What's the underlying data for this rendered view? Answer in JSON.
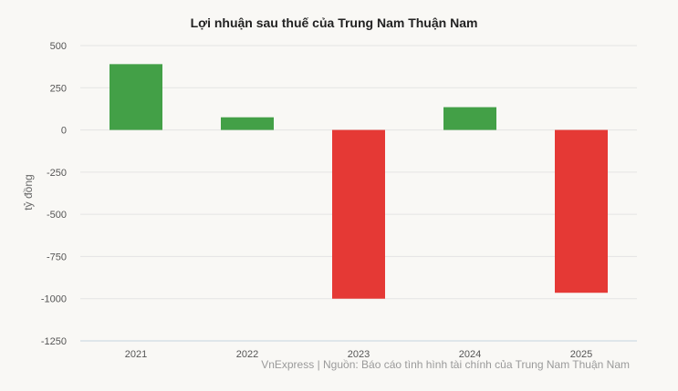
{
  "chart_data": {
    "type": "bar",
    "title": "Lợi nhuận sau thuế của Trung Nam Thuận Nam",
    "xlabel": "",
    "ylabel": "tỷ đồng",
    "categories": [
      "2021",
      "2022",
      "2023",
      "2024",
      "2025"
    ],
    "values": [
      390,
      75,
      -1000,
      135,
      -965
    ],
    "ylim": [
      -1250,
      500
    ],
    "yticks": [
      500,
      250,
      0,
      -250,
      -500,
      -750,
      -1000,
      -1250
    ],
    "ytick_labels": [
      "500",
      "250",
      "0",
      "-250",
      "-500",
      "-750",
      "-1000",
      "-1250"
    ],
    "grid": true,
    "legend": "none",
    "colors": {
      "positive": "#43a047",
      "negative": "#e53935",
      "grid": "#e4e4e4",
      "axis": "#c5d3e0"
    },
    "source": "VnExpress | Nguồn: Báo cáo tình hình tài chính của Trung Nam Thuận Nam"
  }
}
